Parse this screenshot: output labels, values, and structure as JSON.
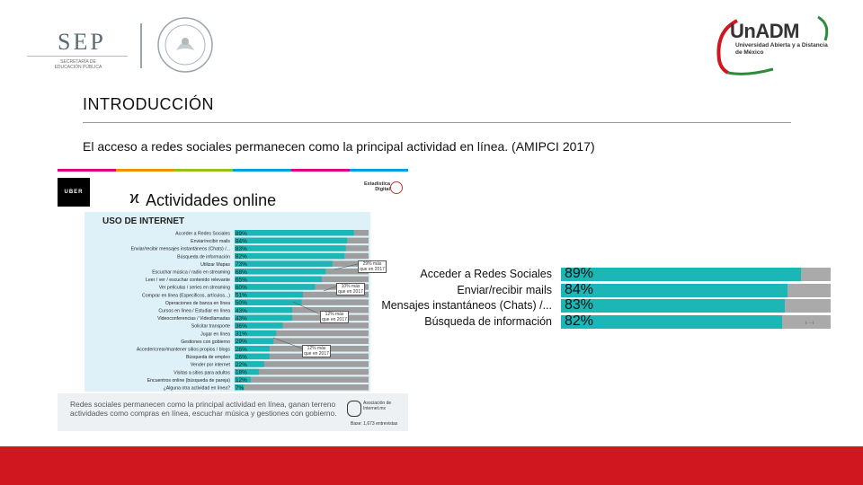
{
  "header": {
    "sep_title": "SEP",
    "sep_subtitle": "SECRETARÍA DE EDUCACIÓN PÚBLICA",
    "unadm_title": "UnADM",
    "unadm_subtitle": "Universidad Abierta y a Distancia de México"
  },
  "slide": {
    "heading": "INTRODUCCIÓN",
    "subtitle": "El acceso a redes sociales permanecen como la principal actividad en línea. (AMIPCI 2017)"
  },
  "infographic": {
    "uber_label": "UBER",
    "title": "Actividades online",
    "brand": "Estadística Digital",
    "panel_title": "USO DE INTERNET",
    "footnote": "Redes sociales permanecen como la principal actividad en línea, ganan terreno actividades como compras en línea, escuchar música y gestiones con gobierno.",
    "org": "Asociación de Internet.mx",
    "base": "Base: 1,673 entrevistas",
    "callouts": [
      "29% más que en 2017",
      "10% más que en 2017",
      "12% más que en 2017",
      "12% más que en 2017"
    ],
    "topbar_colors": [
      "#e4007c",
      "#f39200",
      "#95c11f",
      "#00a0e3",
      "#e4007c",
      "#00a0e3"
    ]
  },
  "chart_data": [
    {
      "type": "bar",
      "title": "USO DE INTERNET",
      "categories": [
        "Acceder a Redes Sociales",
        "Enviar/recibir mails",
        "Enviar/recibir mensajes instantáneos (Chats) /...",
        "Búsqueda de información",
        "Utilizar Mapas",
        "Escuchar música / radio en streaming",
        "Leer / ver / escuchar contenido relevante",
        "Ver películas / series en streaming",
        "Comprar en línea (Especificos, artículos...)",
        "Operaciones de banca en línea",
        "Cursos en línea / Estudiar en línea",
        "Videoconferencias / Videollamadas",
        "Solicitar transporte",
        "Jugar en línea",
        "Gestiones con gobierno",
        "Acceder/crear/mantener sitios propios / blogs",
        "Búsqueda de empleo",
        "Vender por internet",
        "Visitas a sitios para adultos",
        "Encuentros online (búsqueda de pareja)",
        "¿Alguna otra actividad en línea?"
      ],
      "values": [
        89,
        84,
        83,
        82,
        73,
        68,
        65,
        60,
        51,
        50,
        43,
        43,
        36,
        31,
        29,
        26,
        26,
        22,
        18,
        12,
        7
      ],
      "value_labels": [
        "89%",
        "84%",
        "83%",
        "82%",
        "73%",
        "68%",
        "65%",
        "60%",
        "51%",
        "50%",
        "43%",
        "43%",
        "36%",
        "31%",
        "29%",
        "26%",
        "26%",
        "22%",
        "18%",
        "12%",
        "7%"
      ],
      "ylim": [
        0,
        100
      ],
      "fill_color": "#1bb6b6",
      "track_color": "#9e9e9e"
    },
    {
      "type": "bar",
      "title": "",
      "categories": [
        "Acceder a Redes Sociales",
        "Enviar/recibir mails",
        "Mensajes instantáneos (Chats) /...",
        "Búsqueda de información"
      ],
      "values": [
        89,
        84,
        83,
        82
      ],
      "value_labels": [
        "89%",
        "84%",
        "83%",
        "82%"
      ],
      "ylim": [
        0,
        100
      ],
      "fill_color": "#1bb6b6",
      "track_color": "#aaaaaa"
    }
  ],
  "zoom_caption": "(......)"
}
